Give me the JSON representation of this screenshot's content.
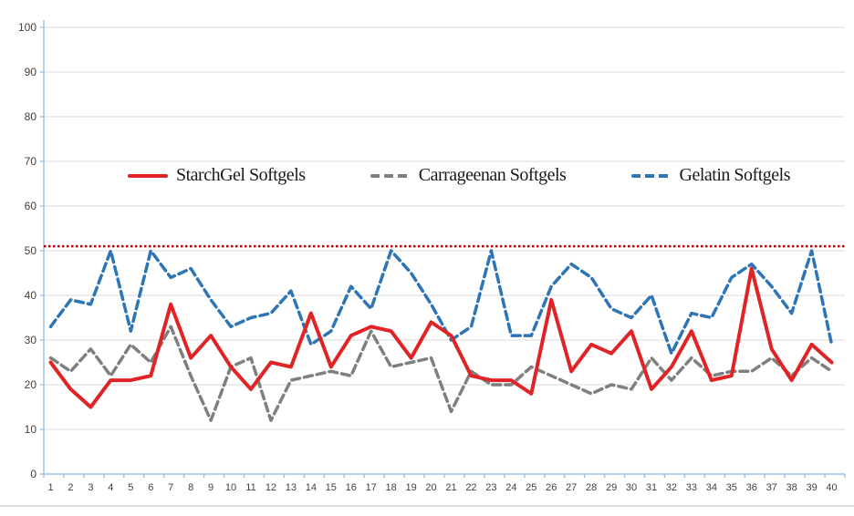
{
  "chart_data": {
    "type": "line",
    "x": [
      1,
      2,
      3,
      4,
      5,
      6,
      7,
      8,
      9,
      10,
      11,
      12,
      13,
      14,
      15,
      16,
      17,
      18,
      19,
      20,
      21,
      22,
      23,
      24,
      25,
      26,
      27,
      28,
      29,
      30,
      31,
      32,
      33,
      34,
      35,
      36,
      37,
      38,
      39,
      40
    ],
    "series": [
      {
        "name": "StarchGel Softgels",
        "color": "#e02426",
        "style": "solid",
        "width": 4,
        "values": [
          25,
          19,
          15,
          21,
          21,
          22,
          38,
          26,
          31,
          24,
          19,
          25,
          24,
          36,
          24,
          31,
          33,
          32,
          26,
          34,
          31,
          22,
          21,
          21,
          18,
          39,
          23,
          29,
          27,
          32,
          19,
          24,
          32,
          21,
          22,
          46,
          28,
          21,
          29,
          25
        ]
      },
      {
        "name": "Carrageenan Softgels",
        "color": "#7f7f7f",
        "style": "dashed",
        "width": 3.5,
        "values": [
          26,
          23,
          28,
          22,
          29,
          25,
          33,
          22,
          12,
          24,
          26,
          12,
          21,
          22,
          23,
          22,
          32,
          24,
          25,
          26,
          14,
          23,
          20,
          20,
          24,
          22,
          20,
          18,
          20,
          19,
          26,
          21,
          26,
          22,
          23,
          23,
          26,
          22,
          26,
          23
        ]
      },
      {
        "name": "Gelatin Softgels",
        "color": "#2e75b6",
        "style": "dashed",
        "width": 3.5,
        "values": [
          33,
          39,
          38,
          50,
          32,
          50,
          44,
          46,
          39,
          33,
          35,
          36,
          41,
          29,
          32,
          42,
          37,
          50,
          45,
          38,
          30,
          33,
          50,
          31,
          31,
          42,
          47,
          44,
          37,
          35,
          40,
          27,
          36,
          35,
          44,
          47,
          42,
          36,
          50,
          29
        ]
      }
    ],
    "reference_line": {
      "value": 51,
      "color": "#c00000",
      "style": "dotted",
      "width": 2.5
    },
    "ylim": [
      0,
      100
    ],
    "ytick_step": 10,
    "grid": "horizontal",
    "legend_position": "inside-top",
    "title": "",
    "xlabel": "",
    "ylabel": ""
  },
  "axes": {
    "y_tick_labels": [
      "0",
      "10",
      "20",
      "30",
      "40",
      "50",
      "60",
      "70",
      "80",
      "90",
      "100"
    ],
    "x_tick_labels": [
      "1",
      "2",
      "3",
      "4",
      "5",
      "6",
      "7",
      "8",
      "9",
      "10",
      "11",
      "12",
      "13",
      "14",
      "15",
      "16",
      "17",
      "18",
      "19",
      "20",
      "21",
      "22",
      "23",
      "24",
      "25",
      "26",
      "27",
      "28",
      "29",
      "30",
      "31",
      "32",
      "33",
      "34",
      "35",
      "36",
      "37",
      "38",
      "39",
      "40"
    ]
  },
  "colors": {
    "gridline": "#d9d9d9",
    "axis": "#9dc3e6",
    "tick_label": "#3f3f3f",
    "background": "#ffffff"
  }
}
